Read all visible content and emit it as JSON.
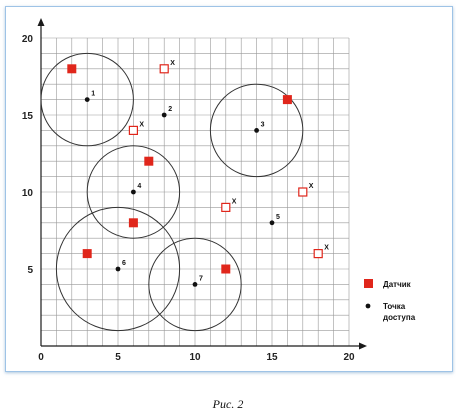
{
  "caption": "Рис. 2",
  "legend": {
    "sensor_label": "Датчик",
    "access_label_line1": "Точка",
    "access_label_line2": "доступа"
  },
  "chart_data": {
    "type": "scatter",
    "xlim": [
      0,
      20
    ],
    "ylim": [
      0,
      20
    ],
    "grid_step": 1,
    "grid": true,
    "x_ticks": [
      0,
      5,
      10,
      15,
      20
    ],
    "y_ticks": [
      5,
      10,
      15,
      20
    ],
    "colors": {
      "sensor": "#e0261b",
      "grid": "#999999",
      "axis": "#1a1a1a",
      "circle": "#333333"
    },
    "access_points": [
      {
        "label": "1",
        "x": 3,
        "y": 16,
        "radius": 3
      },
      {
        "label": "2",
        "x": 8,
        "y": 15
      },
      {
        "label": "3",
        "x": 14,
        "y": 14,
        "radius": 3
      },
      {
        "label": "4",
        "x": 6,
        "y": 10,
        "radius": 3
      },
      {
        "label": "5",
        "x": 15,
        "y": 8
      },
      {
        "label": "6",
        "x": 5,
        "y": 5,
        "radius": 4
      },
      {
        "label": "7",
        "x": 10,
        "y": 4,
        "radius": 3
      }
    ],
    "sensors_filled": [
      {
        "x": 2,
        "y": 18
      },
      {
        "x": 16,
        "y": 16
      },
      {
        "x": 7,
        "y": 12
      },
      {
        "x": 6,
        "y": 8
      },
      {
        "x": 3,
        "y": 6
      },
      {
        "x": 12,
        "y": 5
      }
    ],
    "sensors_uncovered": [
      {
        "x": 8,
        "y": 18,
        "label": "X"
      },
      {
        "x": 6,
        "y": 14,
        "label": "X"
      },
      {
        "x": 12,
        "y": 9,
        "label": "X"
      },
      {
        "x": 17,
        "y": 10,
        "label": "X"
      },
      {
        "x": 18,
        "y": 6,
        "label": "X"
      }
    ]
  }
}
